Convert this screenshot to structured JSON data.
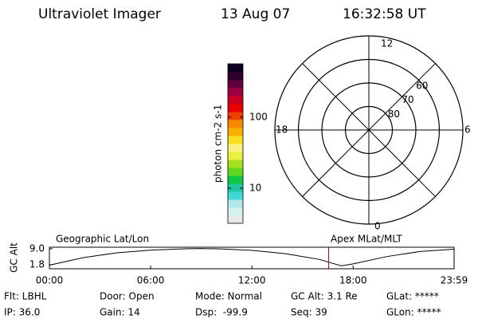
{
  "header": {
    "instrument": "Ultraviolet Imager",
    "date": "13 Aug 07",
    "time": "16:32:58 UT"
  },
  "colorbar": {
    "label": "photon cm-2 s-1",
    "log": true,
    "range": [
      3.2,
      565
    ],
    "ticks": [
      10,
      100
    ],
    "colors": [
      "#e8e8e8",
      "#d8f0f0",
      "#b0e8e8",
      "#40d8d8",
      "#20c8a0",
      "#10c840",
      "#60d820",
      "#a8e020",
      "#e8f040",
      "#f8f080",
      "#f8e020",
      "#f8b000",
      "#f88800",
      "#f04000",
      "#e80000",
      "#c80020",
      "#a00040",
      "#600040",
      "#300030",
      "#100020"
    ]
  },
  "polar": {
    "mlt_labels": [
      "12",
      "6",
      "0",
      "18"
    ],
    "lat_min": 50,
    "lat_rings": [
      60,
      70,
      80
    ]
  },
  "altitude": {
    "y_label": "GC Alt",
    "left_label": "Geographic Lat/Lon",
    "right_label": "Apex MLat/MLT",
    "xlim": [
      0,
      23.983
    ],
    "ylim": [
      0,
      9.7
    ],
    "xticks": [
      {
        "value": 0,
        "label": "00:00"
      },
      {
        "value": 6,
        "label": "06:00"
      },
      {
        "value": 12,
        "label": "12:00"
      },
      {
        "value": 18,
        "label": "18:00"
      },
      {
        "value": 23.983,
        "label": "23:59"
      }
    ],
    "yticks": [
      {
        "value": 9,
        "label": "9.0"
      },
      1.8
    ],
    "x": [
      0,
      2,
      4,
      6,
      8,
      9,
      10,
      12,
      14,
      16,
      17.3,
      18,
      20,
      22,
      23.983
    ],
    "values": [
      1.6,
      5.0,
      7.2,
      8.4,
      9.0,
      9.1,
      9.0,
      8.3,
      6.8,
      4.2,
      1.3,
      2.2,
      5.5,
      7.8,
      8.8
    ],
    "current_time": 16.549
  },
  "info": {
    "rows": [
      [
        "Flt: LBHL",
        "Door: Open",
        "Mode: Normal",
        "GC Alt: 3.1 Re",
        "GLat: *****"
      ],
      [
        "IP: 36.0",
        "Gain: 14",
        "Dsp:  -99.9",
        "Seq: 39",
        "GLon: *****"
      ]
    ]
  }
}
